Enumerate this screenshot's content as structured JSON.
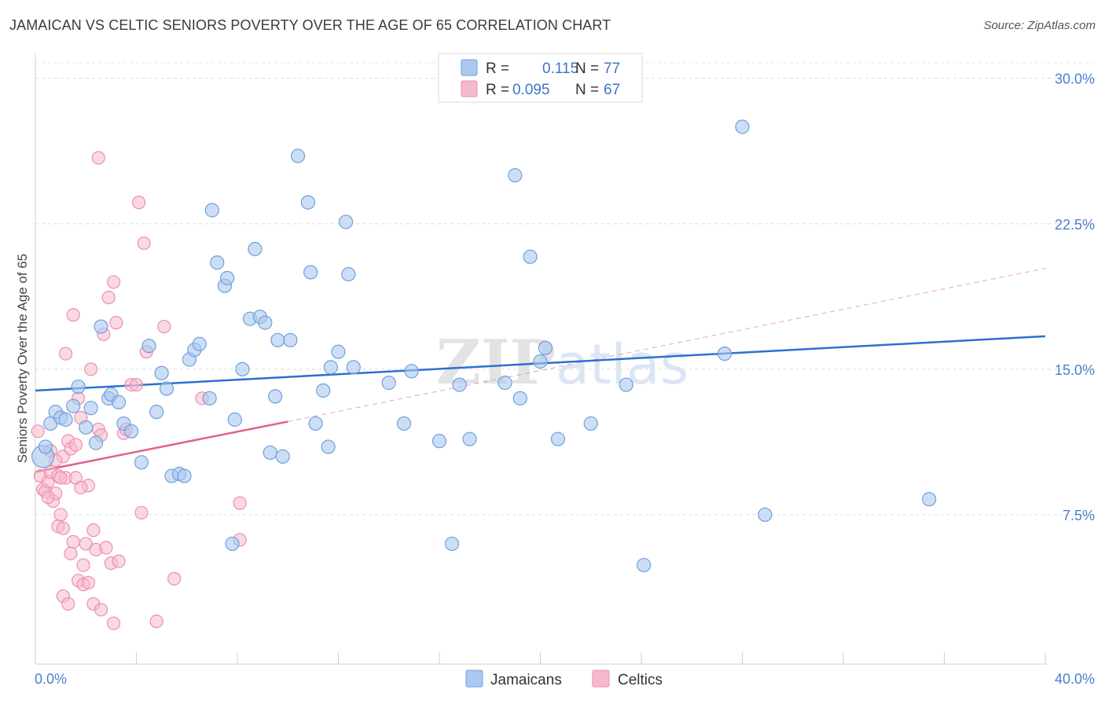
{
  "title": "JAMAICAN VS CELTIC SENIORS POVERTY OVER THE AGE OF 65 CORRELATION CHART",
  "source": "Source: ZipAtlas.com",
  "watermark": "ZIPatlas",
  "colors": {
    "jamaicans_fill": "#aac8f0",
    "jamaicans_stroke": "#6f9fdc",
    "jamaicans_line": "#2e6fd0",
    "celtics_fill": "#f6b9cc",
    "celtics_stroke": "#ec8fae",
    "celtics_line": "#e0628c",
    "tick_text": "#4a7fd0"
  },
  "legend": {
    "rows": [
      {
        "r_label": "R =",
        "r_value": "0.115",
        "n_label": "N =",
        "n_value": "77"
      },
      {
        "r_label": "R =",
        "r_value": "0.095",
        "n_label": "N =",
        "n_value": "67"
      }
    ]
  },
  "bottom_legend": [
    "Jamaicans",
    "Celtics"
  ],
  "chart_data": {
    "type": "scatter",
    "title": "JAMAICAN VS CELTIC SENIORS POVERTY OVER THE AGE OF 65 CORRELATION CHART",
    "xlabel": "",
    "ylabel": "Seniors Poverty Over the Age of 65",
    "xlim": [
      0,
      40
    ],
    "ylim": [
      0,
      31
    ],
    "x_tick_labels": [
      "0.0%",
      "40.0%"
    ],
    "y_ticks": [
      7.5,
      15.0,
      22.5,
      30.0
    ],
    "y_tick_labels": [
      "7.5%",
      "15.0%",
      "22.5%",
      "30.0%"
    ],
    "grid": true,
    "legend_position": "top-center",
    "series": [
      {
        "name": "Jamaicans",
        "r": 0.115,
        "n": 77,
        "trend": {
          "x0": 0,
          "y0": 13.9,
          "x1": 40,
          "y1": 16.7
        },
        "points": [
          [
            0.3,
            10.5
          ],
          [
            0.4,
            11.0
          ],
          [
            0.6,
            12.2
          ],
          [
            0.8,
            12.8
          ],
          [
            1.0,
            12.5
          ],
          [
            1.2,
            12.4
          ],
          [
            1.5,
            13.1
          ],
          [
            1.7,
            14.1
          ],
          [
            2.0,
            12.0
          ],
          [
            2.2,
            13.0
          ],
          [
            2.4,
            11.2
          ],
          [
            2.6,
            17.2
          ],
          [
            2.9,
            13.5
          ],
          [
            3.0,
            13.7
          ],
          [
            3.3,
            13.3
          ],
          [
            3.5,
            12.2
          ],
          [
            3.8,
            11.8
          ],
          [
            4.2,
            10.2
          ],
          [
            4.5,
            16.2
          ],
          [
            4.8,
            12.8
          ],
          [
            5.0,
            14.8
          ],
          [
            5.2,
            14.0
          ],
          [
            5.4,
            9.5
          ],
          [
            5.7,
            9.6
          ],
          [
            5.9,
            9.5
          ],
          [
            6.1,
            15.5
          ],
          [
            6.3,
            16.0
          ],
          [
            6.5,
            16.3
          ],
          [
            6.9,
            13.5
          ],
          [
            7.0,
            23.2
          ],
          [
            7.2,
            20.5
          ],
          [
            7.5,
            19.3
          ],
          [
            7.6,
            19.7
          ],
          [
            7.8,
            6.0
          ],
          [
            7.9,
            12.4
          ],
          [
            8.2,
            15.0
          ],
          [
            8.5,
            17.6
          ],
          [
            8.7,
            21.2
          ],
          [
            8.9,
            17.7
          ],
          [
            9.1,
            17.4
          ],
          [
            9.3,
            10.7
          ],
          [
            9.5,
            13.6
          ],
          [
            9.6,
            16.5
          ],
          [
            9.8,
            10.5
          ],
          [
            10.1,
            16.5
          ],
          [
            10.4,
            26.0
          ],
          [
            10.8,
            23.6
          ],
          [
            10.9,
            20.0
          ],
          [
            11.1,
            12.2
          ],
          [
            11.4,
            13.9
          ],
          [
            11.6,
            11.0
          ],
          [
            11.7,
            15.1
          ],
          [
            12.0,
            15.9
          ],
          [
            12.3,
            22.6
          ],
          [
            12.4,
            19.9
          ],
          [
            12.6,
            15.1
          ],
          [
            14.0,
            14.3
          ],
          [
            14.6,
            12.2
          ],
          [
            14.9,
            14.9
          ],
          [
            16.0,
            11.3
          ],
          [
            16.5,
            6.0
          ],
          [
            16.8,
            14.2
          ],
          [
            17.2,
            11.4
          ],
          [
            18.6,
            14.3
          ],
          [
            19.0,
            25.0
          ],
          [
            19.2,
            13.5
          ],
          [
            19.6,
            20.8
          ],
          [
            20.0,
            15.4
          ],
          [
            20.2,
            16.1
          ],
          [
            20.7,
            11.4
          ],
          [
            22.0,
            12.2
          ],
          [
            23.4,
            14.2
          ],
          [
            24.1,
            4.9
          ],
          [
            27.3,
            15.8
          ],
          [
            28.0,
            27.5
          ],
          [
            28.9,
            7.5
          ],
          [
            35.4,
            8.3
          ]
        ]
      },
      {
        "name": "Celtics",
        "r": 0.095,
        "n": 67,
        "trend": {
          "x0": 0,
          "y0": 9.7,
          "x1": 10.0,
          "y1": 12.3
        },
        "trend_dashed": {
          "x0": 10.0,
          "y0": 12.3,
          "x1": 40,
          "y1": 20.2
        },
        "points": [
          [
            0.1,
            11.8
          ],
          [
            0.2,
            9.5
          ],
          [
            0.3,
            8.8
          ],
          [
            0.4,
            8.7
          ],
          [
            0.5,
            9.2
          ],
          [
            0.6,
            9.7
          ],
          [
            0.7,
            8.2
          ],
          [
            0.8,
            8.6
          ],
          [
            0.9,
            9.5
          ],
          [
            1.0,
            7.5
          ],
          [
            1.1,
            10.5
          ],
          [
            1.2,
            9.4
          ],
          [
            1.2,
            15.8
          ],
          [
            1.3,
            11.3
          ],
          [
            1.4,
            10.9
          ],
          [
            1.5,
            17.8
          ],
          [
            1.6,
            9.4
          ],
          [
            1.6,
            11.1
          ],
          [
            1.7,
            13.5
          ],
          [
            1.8,
            12.5
          ],
          [
            1.9,
            4.9
          ],
          [
            2.0,
            6.0
          ],
          [
            2.1,
            9.0
          ],
          [
            2.2,
            15.0
          ],
          [
            2.3,
            6.7
          ],
          [
            2.4,
            5.7
          ],
          [
            2.5,
            11.9
          ],
          [
            2.5,
            25.9
          ],
          [
            2.6,
            11.6
          ],
          [
            2.7,
            16.8
          ],
          [
            2.8,
            5.8
          ],
          [
            2.9,
            18.7
          ],
          [
            3.0,
            5.0
          ],
          [
            3.1,
            19.5
          ],
          [
            3.2,
            17.4
          ],
          [
            3.3,
            5.1
          ],
          [
            3.5,
            11.7
          ],
          [
            3.6,
            11.9
          ],
          [
            3.8,
            14.2
          ],
          [
            4.0,
            14.2
          ],
          [
            4.1,
            23.6
          ],
          [
            4.2,
            7.6
          ],
          [
            4.3,
            21.5
          ],
          [
            4.4,
            15.9
          ],
          [
            4.8,
            2.0
          ],
          [
            5.1,
            17.2
          ],
          [
            5.5,
            4.2
          ],
          [
            6.6,
            13.5
          ],
          [
            0.5,
            8.4
          ],
          [
            0.9,
            6.9
          ],
          [
            1.1,
            3.3
          ],
          [
            1.3,
            2.9
          ],
          [
            1.5,
            6.1
          ],
          [
            1.7,
            4.1
          ],
          [
            1.9,
            3.9
          ],
          [
            2.1,
            4.0
          ],
          [
            2.3,
            2.9
          ],
          [
            2.6,
            2.6
          ],
          [
            3.1,
            1.9
          ],
          [
            1.1,
            6.8
          ],
          [
            1.4,
            5.5
          ],
          [
            8.1,
            6.2
          ],
          [
            8.1,
            8.1
          ],
          [
            0.6,
            10.8
          ],
          [
            0.8,
            10.3
          ],
          [
            1.0,
            9.4
          ],
          [
            1.8,
            8.9
          ]
        ]
      }
    ]
  }
}
